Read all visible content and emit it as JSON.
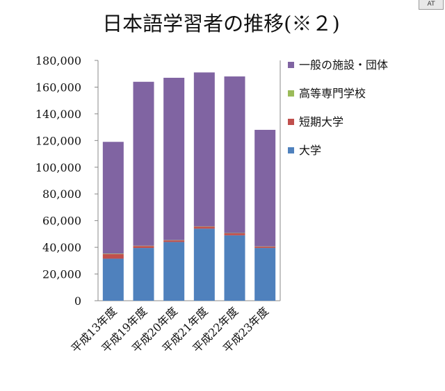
{
  "badge": "AT",
  "chart_data": {
    "type": "bar",
    "stacked": true,
    "title": "日本語学習者の推移(※２)",
    "xlabel": "",
    "ylabel": "",
    "ylim": [
      0,
      180000
    ],
    "yticks": [
      0,
      20000,
      40000,
      60000,
      80000,
      100000,
      120000,
      140000,
      160000,
      180000
    ],
    "ytick_labels": [
      "0",
      "20,000",
      "40,000",
      "60,000",
      "80,000",
      "100,000",
      "120,000",
      "140,000",
      "160,000",
      "180,000"
    ],
    "grid": false,
    "legend_position": "right",
    "categories": [
      "平成13年度",
      "平成19年度",
      "平成20年度",
      "平成21年度",
      "平成22年度",
      "平成23年度"
    ],
    "series": [
      {
        "name": "大学",
        "color": "#4f81bd",
        "values": [
          31500,
          39500,
          44000,
          54000,
          49000,
          39500
        ]
      },
      {
        "name": "短期大学",
        "color": "#c0504d",
        "values": [
          3500,
          1500,
          1200,
          1500,
          1500,
          1000
        ]
      },
      {
        "name": "高等専門学校",
        "color": "#9bbb59",
        "values": [
          300,
          200,
          200,
          200,
          200,
          200
        ]
      },
      {
        "name": "一般の施設・団体",
        "color": "#8064a2",
        "values": [
          83700,
          122800,
          121600,
          115300,
          117300,
          87300
        ]
      }
    ]
  }
}
